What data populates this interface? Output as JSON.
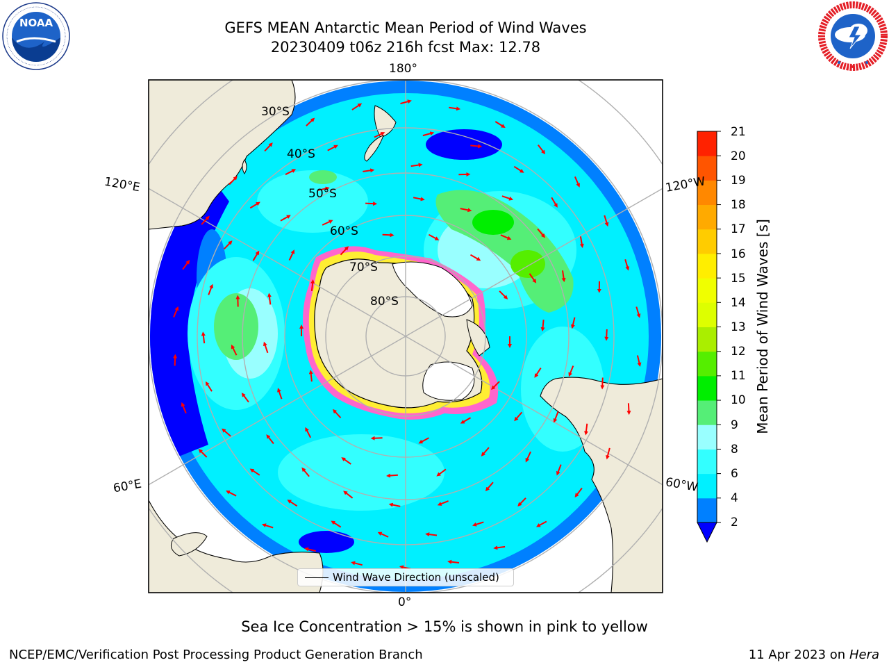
{
  "title": {
    "line1": "GEFS MEAN Antarctic Mean Period of Wind Waves",
    "line2": "20230409 t06z 216h fcst   Max: 12.78"
  },
  "logos": {
    "left": {
      "name": "noaa-logo",
      "text": "NOAA",
      "ring_text": "NATIONAL OCEANIC AND ATMOSPHERIC ADMINISTRATION · U.S. DEPARTMENT OF COMMERCE"
    },
    "right": {
      "name": "nws-logo",
      "ring_text": "NATIONAL WEATHER SERVICE"
    }
  },
  "map": {
    "projection": "south polar stereographic",
    "longitude_labels": {
      "top": "180°",
      "upper_left": "120°E",
      "upper_right": "120°W",
      "lower_left": "60°E",
      "lower_right": "60°W",
      "bottom": "0°"
    },
    "latitude_labels": [
      "30°S",
      "40°S",
      "50°S",
      "60°S",
      "70°S",
      "80°S"
    ],
    "land_color": "#efebda",
    "ice_shelf_color": "#ffffff",
    "sea_ice_colors": [
      "#ff66cc",
      "#ffee33"
    ]
  },
  "colorbar": {
    "title": "Mean Period of Wind Waves [s]",
    "ticks": [
      "21",
      "20",
      "19",
      "18",
      "17",
      "16",
      "15",
      "14",
      "13",
      "12",
      "11",
      "10",
      "9",
      "8",
      "6",
      "4",
      "2"
    ],
    "levels": [
      {
        "from": 2,
        "to": 4,
        "color": "#0080ff"
      },
      {
        "from": 4,
        "to": 6,
        "color": "#00f0ff"
      },
      {
        "from": 6,
        "to": 8,
        "color": "#33ffff"
      },
      {
        "from": 8,
        "to": 9,
        "color": "#99ffff"
      },
      {
        "from": 9,
        "to": 10,
        "color": "#55ee77"
      },
      {
        "from": 10,
        "to": 11,
        "color": "#00ee00"
      },
      {
        "from": 11,
        "to": 12,
        "color": "#55ee00"
      },
      {
        "from": 12,
        "to": 13,
        "color": "#aaee00"
      },
      {
        "from": 13,
        "to": 14,
        "color": "#ddff00"
      },
      {
        "from": 14,
        "to": 15,
        "color": "#f0ff00"
      },
      {
        "from": 15,
        "to": 16,
        "color": "#ffee00"
      },
      {
        "from": 16,
        "to": 17,
        "color": "#ffcc00"
      },
      {
        "from": 17,
        "to": 18,
        "color": "#ffaa00"
      },
      {
        "from": 18,
        "to": 19,
        "color": "#ff8800"
      },
      {
        "from": 19,
        "to": 20,
        "color": "#ff5500"
      },
      {
        "from": 20,
        "to": 21,
        "color": "#ff2200"
      }
    ],
    "extend_color": "#0000ff"
  },
  "legend": {
    "label": "Wind Wave Direction (unscaled)"
  },
  "caption": "Sea Ice Concentration > 15% is shown in pink to yellow",
  "footer": {
    "left": "NCEP/EMC/Verification Post Processing Product Generation Branch",
    "right_prefix": "11 Apr 2023 on ",
    "right_host": "Hera"
  }
}
